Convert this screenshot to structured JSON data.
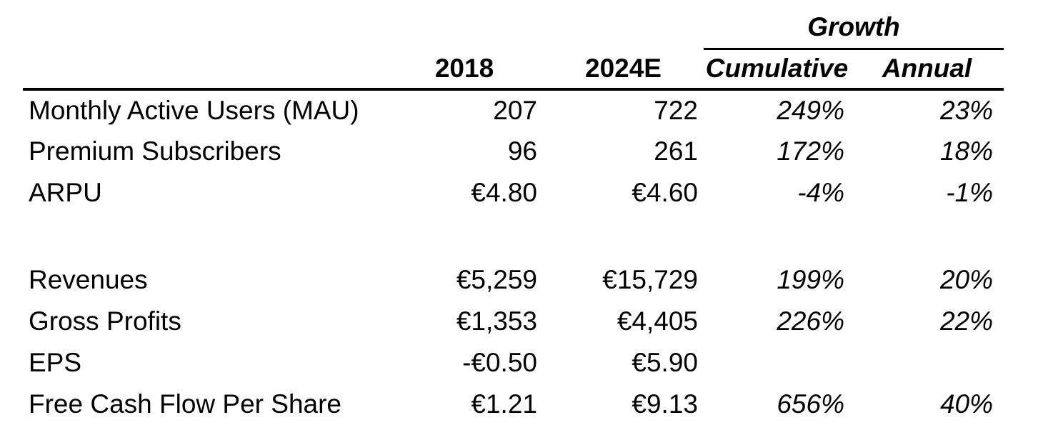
{
  "table": {
    "growth_group_label": "Growth",
    "col_headers": {
      "year1": "2018",
      "year2": "2024E",
      "cumulative": "Cumulative",
      "annual": "Annual"
    },
    "rows": [
      {
        "label": "Monthly Active Users (MAU)",
        "v2018": "207",
        "v2024e": "722",
        "cumulative": "249%",
        "annual": "23%"
      },
      {
        "label": "Premium Subscribers",
        "v2018": "96",
        "v2024e": "261",
        "cumulative": "172%",
        "annual": "18%"
      },
      {
        "label": "ARPU",
        "v2018": "€4.80",
        "v2024e": "€4.60",
        "cumulative": "-4%",
        "annual": "-1%"
      },
      {
        "label": "Revenues",
        "v2018": "€5,259",
        "v2024e": "€15,729",
        "cumulative": "199%",
        "annual": "20%"
      },
      {
        "label": "Gross Profits",
        "v2018": "€1,353",
        "v2024e": "€4,405",
        "cumulative": "226%",
        "annual": "22%"
      },
      {
        "label": "EPS",
        "v2018": "-€0.50",
        "v2024e": "€5.90",
        "cumulative": "",
        "annual": ""
      },
      {
        "label": "Free Cash Flow Per Share",
        "v2018": "€1.21",
        "v2024e": "€9.13",
        "cumulative": "656%",
        "annual": "40%"
      }
    ]
  },
  "colors": {
    "text": "#000000",
    "background": "#ffffff",
    "rule": "#000000"
  }
}
